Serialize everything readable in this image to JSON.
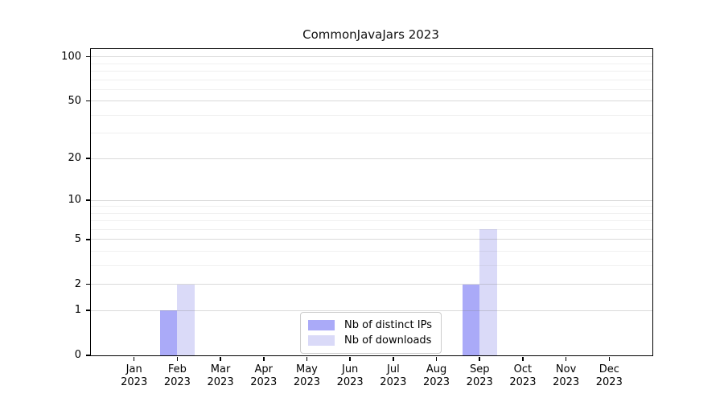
{
  "chart": {
    "title": "CommonJavaJars 2023"
  },
  "chart_data": {
    "type": "bar",
    "title": "CommonJavaJars 2023",
    "categories": [
      "Jan",
      "Feb",
      "Mar",
      "Apr",
      "May",
      "Jun",
      "Jul",
      "Aug",
      "Sep",
      "Oct",
      "Nov",
      "Dec"
    ],
    "category_year": "2023",
    "series": [
      {
        "name": "Nb of distinct IPs",
        "color": "#aaaaf8",
        "values": [
          0,
          1,
          0,
          0,
          0,
          0,
          0,
          0,
          2,
          0,
          0,
          0
        ]
      },
      {
        "name": "Nb of downloads",
        "color": "#dadaf8",
        "values": [
          0,
          2,
          0,
          0,
          0,
          0,
          0,
          0,
          6,
          0,
          0,
          0
        ]
      }
    ],
    "yscale": "log1p",
    "ylim": [
      0,
      113
    ],
    "y_ticks": [
      0,
      1,
      2,
      5,
      10,
      20,
      50,
      100
    ],
    "y_minor_gridlines": [
      3,
      4,
      6,
      7,
      8,
      9,
      30,
      40,
      60,
      70,
      80,
      90
    ],
    "xlabel": "",
    "ylabel": "",
    "grid": "horizontal",
    "legend_position": "bottom-center"
  },
  "colors": {
    "major_grid": "rgba(128,128,128,0.30)",
    "minor_grid": "rgba(128,128,128,0.12)",
    "spine": "#000000",
    "text": "#000000"
  }
}
